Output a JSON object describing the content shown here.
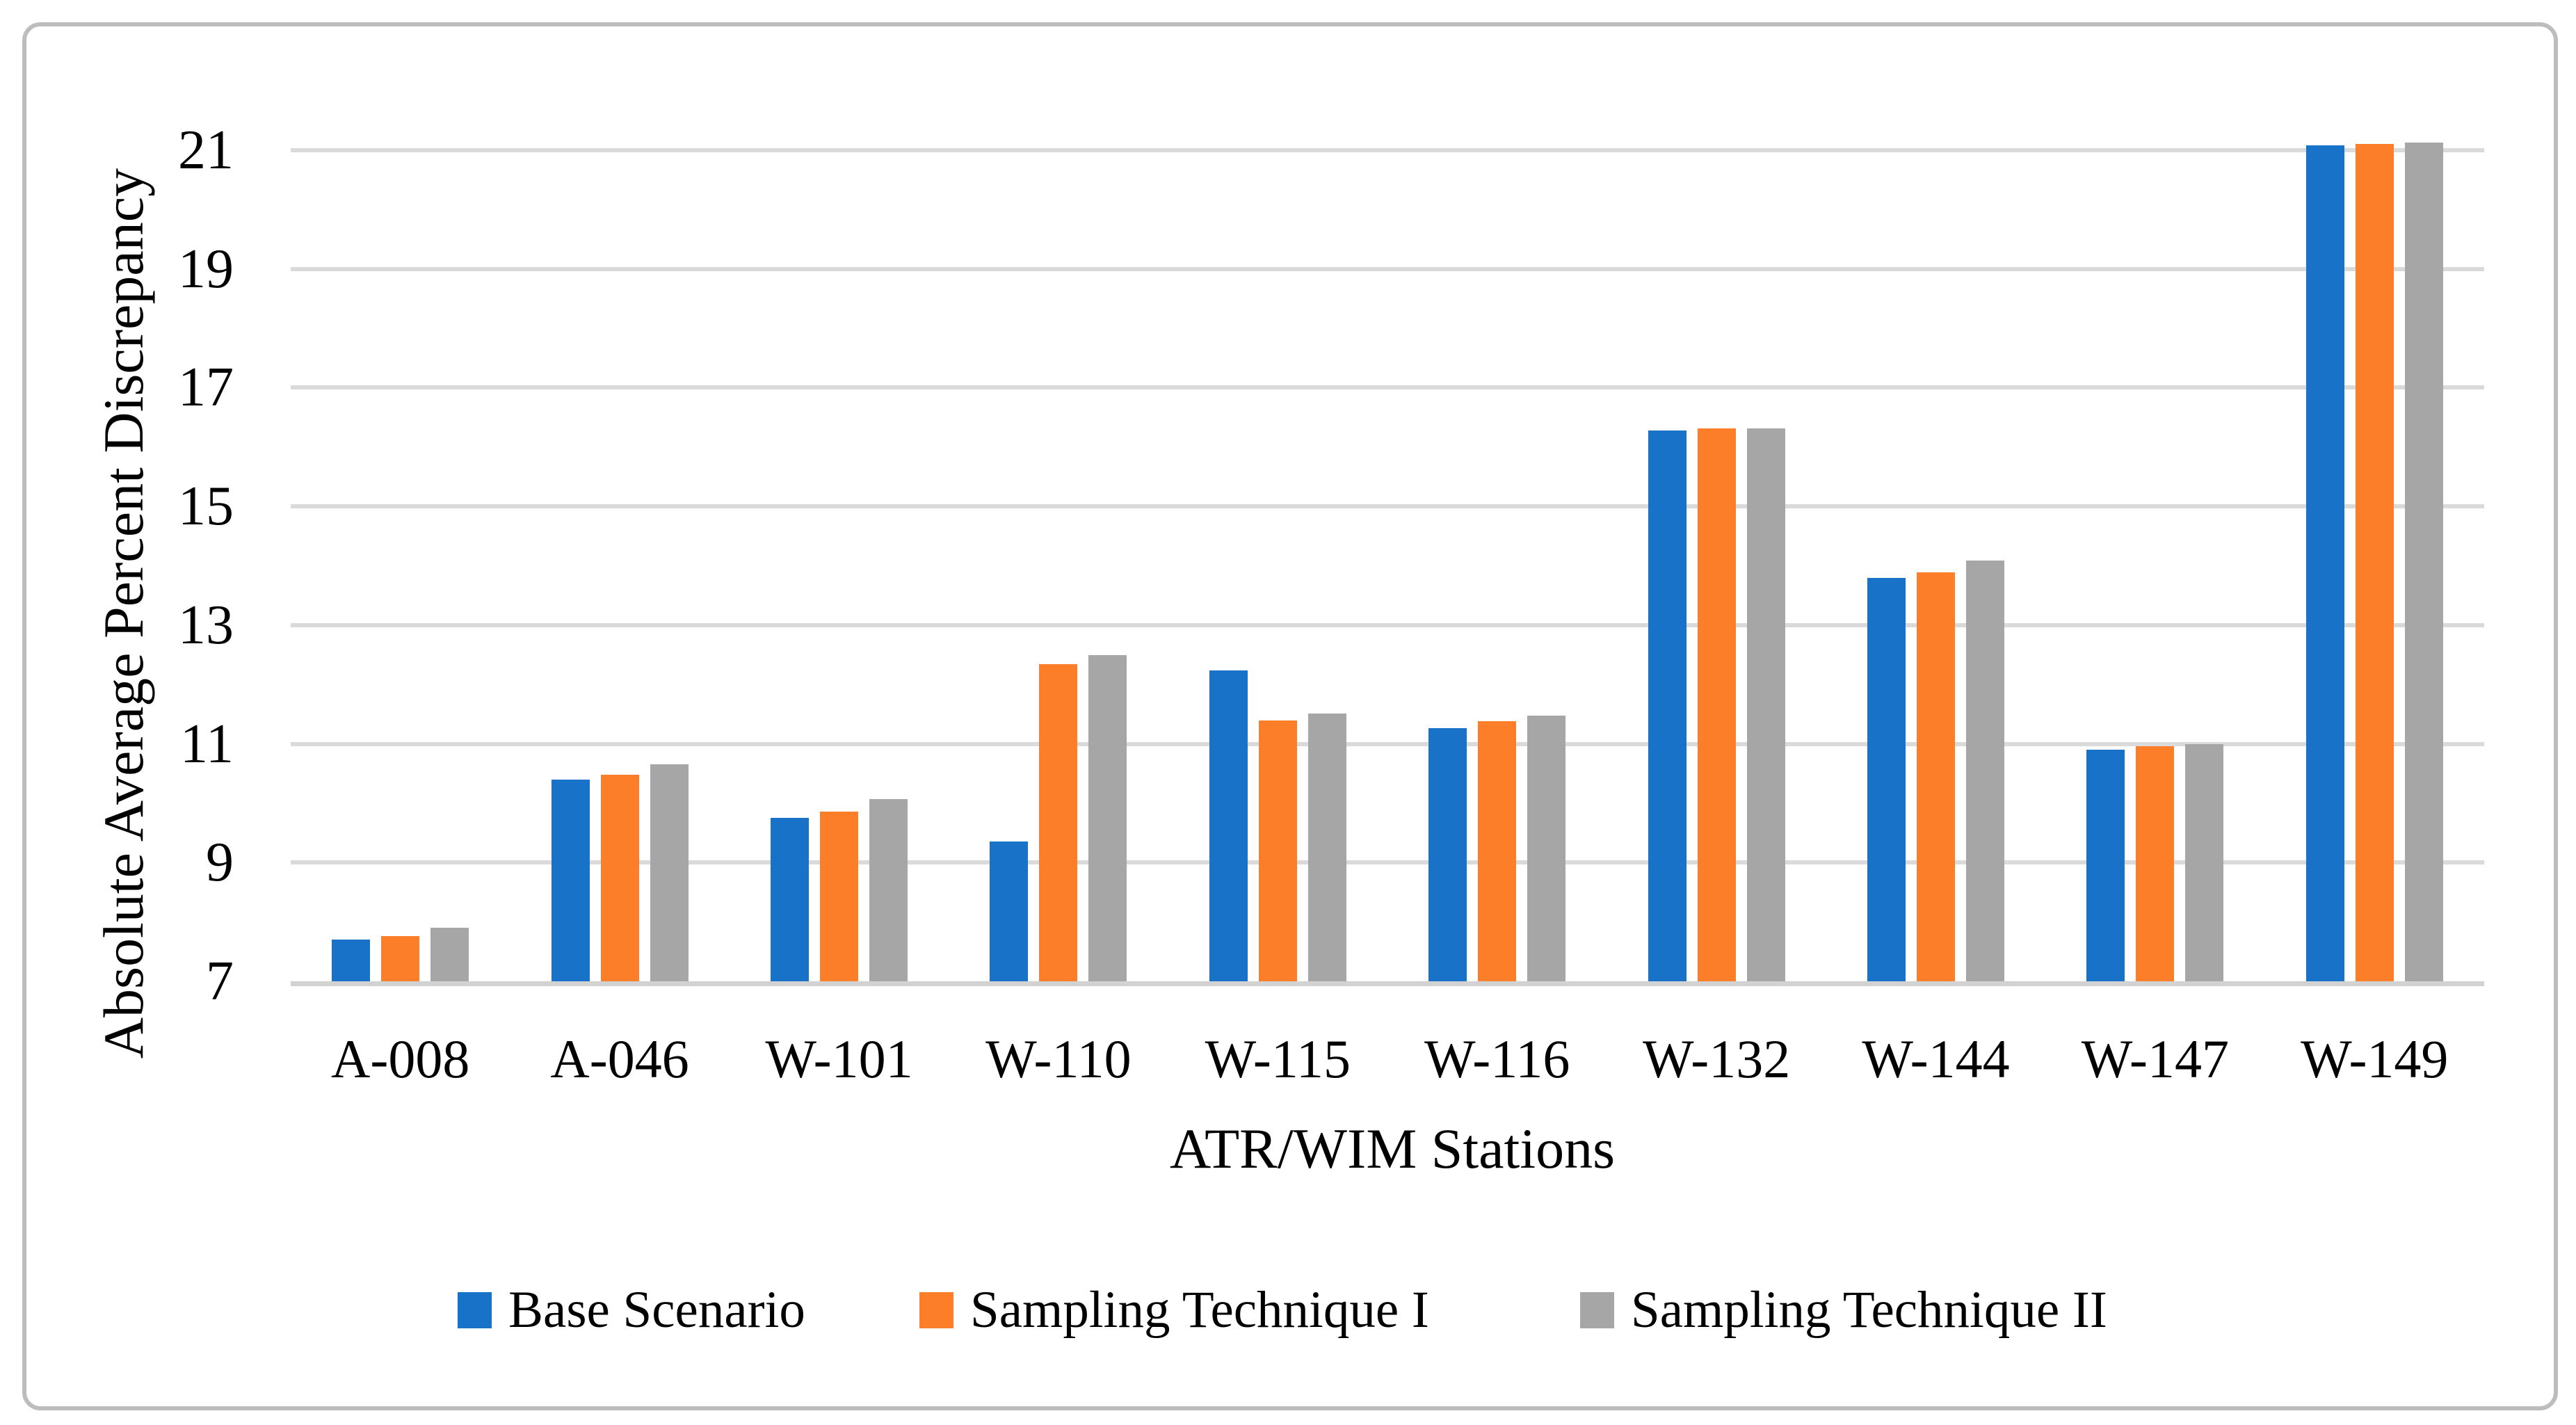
{
  "y_axis_title": "Absolute Average Percent Discrepancy",
  "x_axis_title": "ATR/WIM Stations",
  "colors": {
    "base_scenario": "#1872C8",
    "sampling_technique_1": "#FD7E28",
    "sampling_technique_2": "#A6A6A6",
    "gridline": "#DADADA",
    "axis_line": "#D2D2D2",
    "frame_border": "#BDBDBD"
  },
  "legend": [
    {
      "label": "Base Scenario",
      "color": "#1872C8"
    },
    {
      "label": "Sampling Technique I",
      "color": "#FD7E28"
    },
    {
      "label": "Sampling Technique II",
      "color": "#A6A6A6"
    }
  ],
  "chart_data": {
    "type": "bar",
    "title": "",
    "xlabel": "ATR/WIM Stations",
    "ylabel": "Absolute Average Percent Discrepancy",
    "categories": [
      "A-008",
      "A-046",
      "W-101",
      "W-110",
      "W-115",
      "W-116",
      "W-132",
      "W-144",
      "W-147",
      "W-149"
    ],
    "series": [
      {
        "name": "Base Scenario",
        "color": "#1872C8",
        "values": [
          7.7,
          10.4,
          9.75,
          9.36,
          12.24,
          11.27,
          16.28,
          13.8,
          10.9,
          21.08
        ]
      },
      {
        "name": "Sampling Technique I",
        "color": "#FD7E28",
        "values": [
          7.76,
          10.48,
          9.86,
          12.34,
          11.39,
          11.38,
          16.31,
          13.89,
          10.96,
          21.11
        ]
      },
      {
        "name": "Sampling Technique II",
        "color": "#A6A6A6",
        "values": [
          7.9,
          10.65,
          10.07,
          12.5,
          11.51,
          11.48,
          16.31,
          14.09,
          11.0,
          21.13
        ]
      }
    ],
    "yticks": [
      7,
      9,
      11,
      13,
      15,
      17,
      19,
      21
    ],
    "ylim": [
      7,
      21
    ],
    "grid": true,
    "legend_position": "bottom"
  }
}
